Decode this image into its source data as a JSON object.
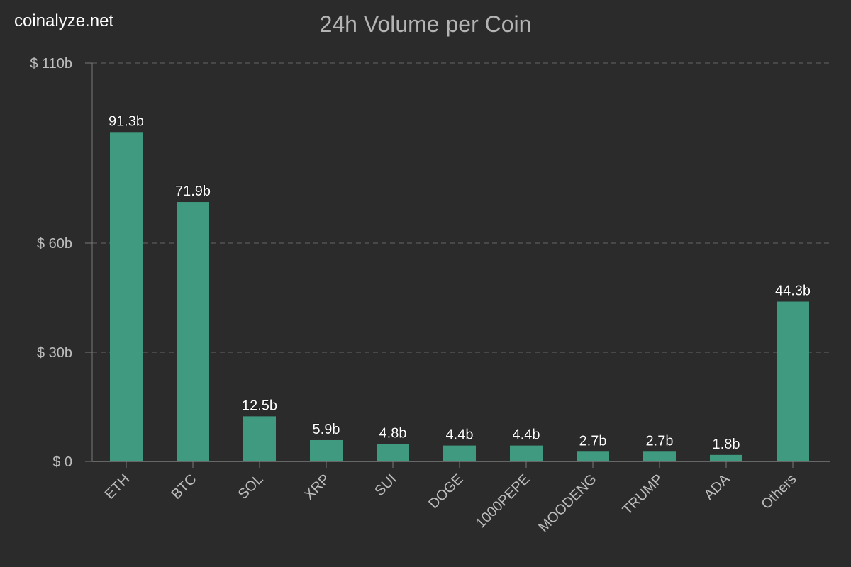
{
  "brand": "coinalyze.net",
  "colors": {
    "background": "#2b2b2b",
    "bar": "#3f9a7f",
    "grid": "#5a5a5a",
    "axis": "#7a7a7a",
    "tick_text": "#bdbdbd",
    "label_text": "#ffffff",
    "title_text": "#b4b4b4"
  },
  "chart_data": {
    "type": "bar",
    "title": "24h Volume per Coin",
    "categories": [
      "ETH",
      "BTC",
      "SOL",
      "XRP",
      "SUI",
      "DOGE",
      "1000PEPE",
      "MOODENG",
      "TRUMP",
      "ADA",
      "Others"
    ],
    "values": [
      91.3,
      71.9,
      12.5,
      5.9,
      4.8,
      4.4,
      4.4,
      2.7,
      2.7,
      1.8,
      44.3
    ],
    "data_labels": [
      "91.3b",
      "71.9b",
      "12.5b",
      "5.9b",
      "4.8b",
      "4.4b",
      "4.4b",
      "2.7b",
      "2.7b",
      "1.8b",
      "44.3b"
    ],
    "y_ticks": [
      0,
      30,
      60,
      110
    ],
    "y_tick_labels": [
      "$ 0",
      "$ 30b",
      "$ 60b",
      "$ 110b"
    ],
    "ylim": [
      0,
      110
    ],
    "y_scale": "non-linear (ticks at 0, 30, 60, 110)",
    "grid": true,
    "xlabel": "",
    "ylabel": ""
  }
}
